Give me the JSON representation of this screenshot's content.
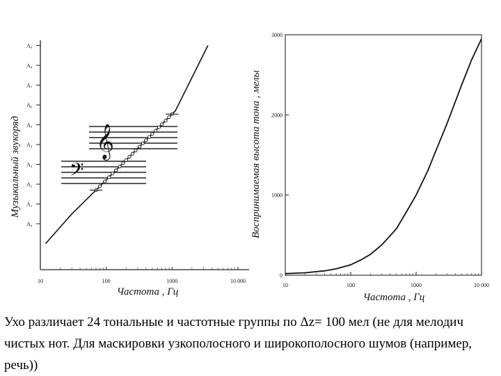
{
  "chart_data": [
    {
      "type": "line",
      "xlabel": "Частота , Гц",
      "ylabel": "Музыкальный звукоряд",
      "x_scale": "log",
      "xlim": [
        10,
        10000
      ],
      "x_ticks": [
        "10",
        "100",
        "1000",
        "10 000"
      ],
      "y_ticks": [
        "A₀",
        "A₁",
        "A₂",
        "A₃",
        "A₄",
        "A₅",
        "A₆",
        "A₇",
        "A₈",
        "A₉"
      ],
      "series": [
        {
          "x": [
            12,
            30,
            70,
            140,
            280,
            560,
            1120,
            3500
          ],
          "y": [
            -1,
            0.5,
            1.7,
            2.7,
            3.7,
            4.7,
            5.7,
            9.0
          ]
        }
      ],
      "markers": {
        "x": [
          70,
          80,
          95,
          110,
          125,
          140,
          160,
          180,
          200,
          225,
          250,
          280,
          320,
          360,
          400,
          450,
          500,
          560,
          630,
          700,
          800,
          900,
          1000
        ]
      }
    },
    {
      "type": "line",
      "xlabel": "Частота , Гц",
      "ylabel": "Воспринимаемая высота тона , мелы",
      "x_scale": "log",
      "xlim": [
        10,
        10000
      ],
      "ylim": [
        0,
        3000
      ],
      "x_ticks": [
        "10",
        "100",
        "1000",
        "10 000"
      ],
      "y_ticks": [
        "0",
        "1000",
        "2000",
        "3000"
      ],
      "series": [
        {
          "x": [
            10,
            20,
            40,
            60,
            100,
            150,
            200,
            300,
            500,
            700,
            1000,
            1500,
            2000,
            3000,
            5000,
            7000,
            10000
          ],
          "y": [
            20,
            30,
            55,
            80,
            130,
            200,
            260,
            380,
            580,
            780,
            1000,
            1300,
            1550,
            1900,
            2380,
            2680,
            2950
          ]
        }
      ]
    }
  ],
  "caption": "Ухо различает 24 тональные и частотные группы по Δz= 100 мел (не для мелодич чистых нот. Для маскировки узкополосного и широкополосного шумов (например, речь))"
}
